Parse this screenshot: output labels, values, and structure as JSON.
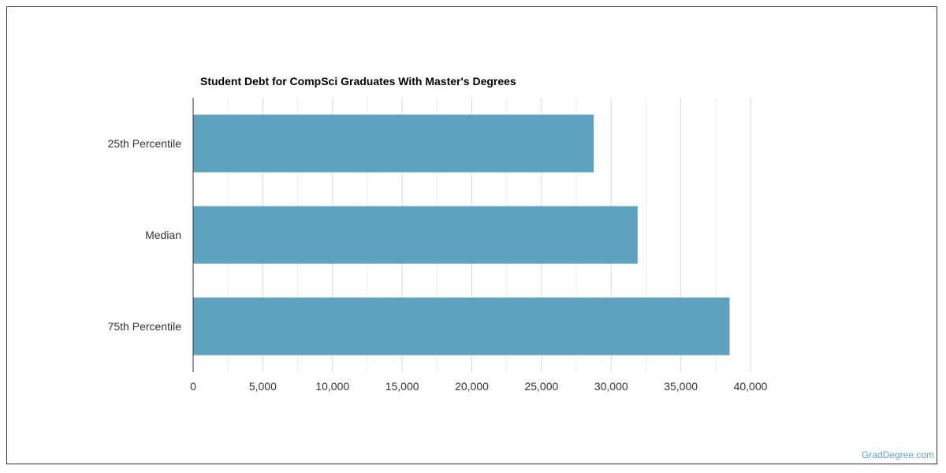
{
  "watermark": "GradDegree.com",
  "colors": {
    "bar": "#5ea2bf",
    "grid": "#d9d9d9",
    "axis": "#333333",
    "watermark": "#5ea2bf"
  },
  "chart_data": {
    "type": "bar",
    "orientation": "horizontal",
    "title": "Student Debt for CompSci Graduates With Master's Degrees",
    "categories": [
      "25th Percentile",
      "Median",
      "75th Percentile"
    ],
    "values": [
      28750,
      31900,
      38500
    ],
    "xlim": [
      0,
      40000
    ],
    "xticks": [
      0,
      5000,
      10000,
      15000,
      20000,
      25000,
      30000,
      35000,
      40000
    ],
    "xtick_labels": [
      "0",
      "5,000",
      "10,000",
      "15,000",
      "20,000",
      "25,000",
      "30,000",
      "35,000",
      "40,000"
    ],
    "grid": true,
    "legend": "none"
  }
}
